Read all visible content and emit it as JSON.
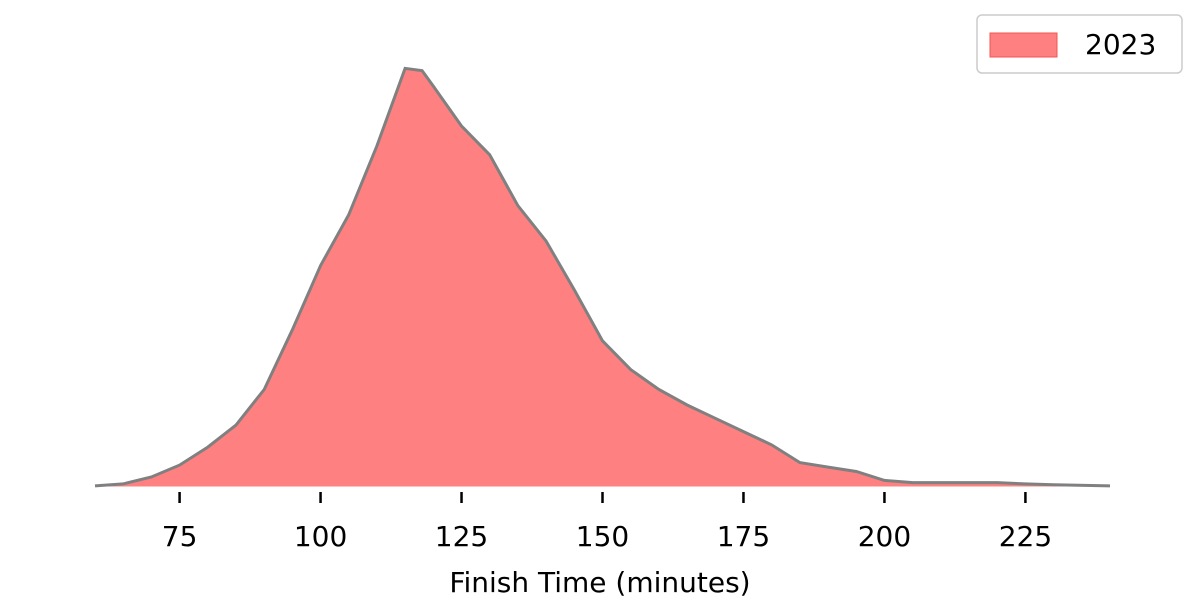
{
  "chart_data": {
    "type": "area",
    "xlabel": "Finish Time (minutes)",
    "x": [
      60,
      65,
      70,
      75,
      80,
      85,
      90,
      95,
      100,
      105,
      110,
      115,
      118,
      120,
      125,
      130,
      135,
      140,
      145,
      150,
      155,
      160,
      165,
      170,
      175,
      180,
      185,
      190,
      195,
      200,
      205,
      210,
      220,
      225,
      230,
      240
    ],
    "series": [
      {
        "name": "2023",
        "color": "#ff8080",
        "line_color": "#808080",
        "values": [
          5e-05,
          0.00014,
          0.00045,
          0.00099,
          0.0018,
          0.0028,
          0.0044,
          0.0071,
          0.01,
          0.0123,
          0.0154,
          0.0189,
          0.0188,
          0.0181,
          0.0163,
          0.015,
          0.0127,
          0.0111,
          0.0089,
          0.0066,
          0.0053,
          0.0044,
          0.0037,
          0.0031,
          0.0025,
          0.0019,
          0.0011,
          0.0009,
          0.0007,
          0.0003,
          0.0002,
          0.0002,
          0.0002,
          0.00014,
          0.0001,
          5e-05
        ]
      }
    ],
    "xlim": [
      60,
      240
    ],
    "xticks": [
      75,
      100,
      125,
      150,
      175,
      200,
      225
    ],
    "ylim": [
      0,
      0.02
    ],
    "legend": "upper right",
    "grid": false
  }
}
